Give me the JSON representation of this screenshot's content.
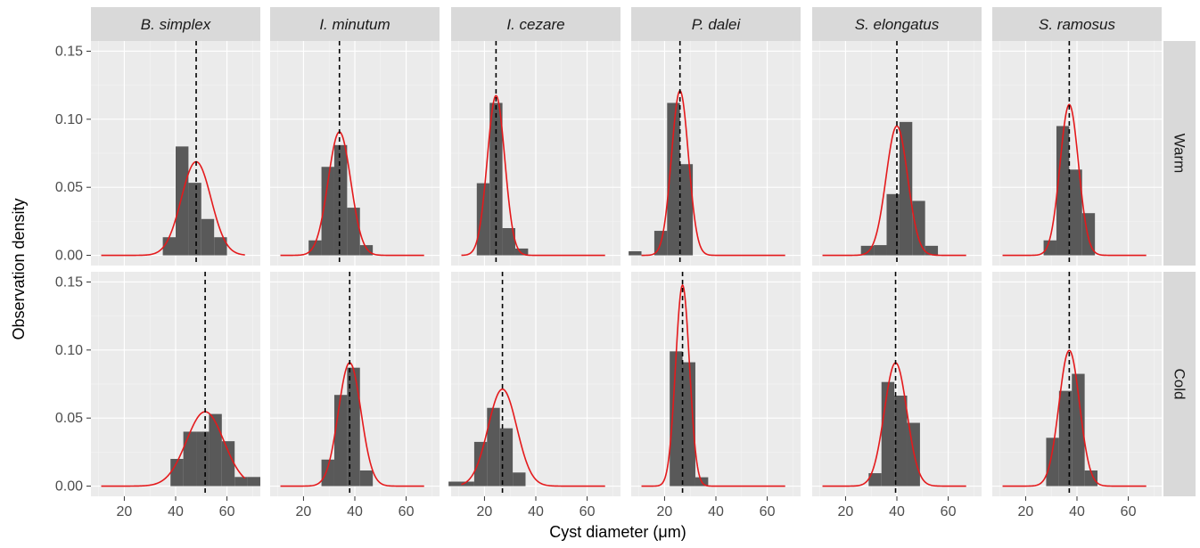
{
  "chart_data": {
    "type": "bar",
    "xlabel": "Cyst diameter (μm)",
    "ylabel": "Observation density",
    "xlim": [
      7,
      73
    ],
    "ylim": [
      -0.0075,
      0.1575
    ],
    "x_ticks": [
      20,
      40,
      60
    ],
    "y_ticks": [
      0.0,
      0.05,
      0.1,
      0.15
    ],
    "y_tick_labels": [
      "0.00",
      "0.05",
      "0.10",
      "0.15"
    ],
    "bin_width": 5,
    "species": [
      "B. simplex",
      "I. minutum",
      "I. cezare",
      "P. dalei",
      "S. elongatus",
      "S. ramosus"
    ],
    "conditions": [
      "Warm",
      "Cold"
    ],
    "colors": {
      "bar": "#595959",
      "curve": "#e41a1c",
      "mean_line": "#000000",
      "panel_bg": "#ebebeb",
      "strip_bg": "#d9d9d9",
      "grid_major": "#ffffff"
    },
    "panels": [
      {
        "species": "B. simplex",
        "condition": "Warm",
        "mean": 48,
        "sd": 5.8,
        "bins": [
          [
            35,
            0.0133
          ],
          [
            40,
            0.08
          ],
          [
            45,
            0.0533
          ],
          [
            50,
            0.0267
          ],
          [
            55,
            0.0133
          ],
          [
            60,
            0.0
          ]
        ]
      },
      {
        "species": "I. minutum",
        "condition": "Warm",
        "mean": 34,
        "sd": 4.4,
        "bins": [
          [
            22,
            0.011
          ],
          [
            27,
            0.065
          ],
          [
            32,
            0.081
          ],
          [
            37,
            0.035
          ],
          [
            42,
            0.0075
          ]
        ]
      },
      {
        "species": "I. cezare",
        "condition": "Warm",
        "mean": 24.5,
        "sd": 3.4,
        "bins": [
          [
            17,
            0.053
          ],
          [
            22,
            0.112
          ],
          [
            27,
            0.02
          ],
          [
            32,
            0.005
          ]
        ]
      },
      {
        "species": "P. dalei",
        "condition": "Warm",
        "mean": 26,
        "sd": 3.3,
        "bins": [
          [
            6,
            0.003
          ],
          [
            11,
            0.0
          ],
          [
            16,
            0.018
          ],
          [
            21,
            0.112
          ],
          [
            26,
            0.067
          ],
          [
            31,
            0.0
          ]
        ]
      },
      {
        "species": "S. elongatus",
        "condition": "Warm",
        "mean": 40,
        "sd": 4.2,
        "bins": [
          [
            26,
            0.007
          ],
          [
            31,
            0.0075
          ],
          [
            36,
            0.045
          ],
          [
            41,
            0.098
          ],
          [
            46,
            0.04
          ],
          [
            51,
            0.007
          ]
        ]
      },
      {
        "species": "S. ramosus",
        "condition": "Warm",
        "mean": 37,
        "sd": 3.6,
        "bins": [
          [
            27,
            0.011
          ],
          [
            32,
            0.095
          ],
          [
            37,
            0.063
          ],
          [
            42,
            0.031
          ]
        ]
      },
      {
        "species": "B. simplex",
        "condition": "Cold",
        "mean": 51.5,
        "sd": 7.3,
        "bins": [
          [
            38,
            0.02
          ],
          [
            43,
            0.04
          ],
          [
            48,
            0.04
          ],
          [
            53,
            0.053
          ],
          [
            58,
            0.033
          ],
          [
            63,
            0.0067
          ],
          [
            68,
            0.0067
          ]
        ]
      },
      {
        "species": "I. minutum",
        "condition": "Cold",
        "mean": 38,
        "sd": 4.4,
        "bins": [
          [
            27,
            0.0195
          ],
          [
            32,
            0.067
          ],
          [
            37,
            0.087
          ],
          [
            42,
            0.0115
          ]
        ]
      },
      {
        "species": "I. cezare",
        "condition": "Cold",
        "mean": 27,
        "sd": 5.6,
        "bins": [
          [
            6,
            0.0033
          ],
          [
            11,
            0.0033
          ],
          [
            16,
            0.0325
          ],
          [
            21,
            0.0575
          ],
          [
            26,
            0.0425
          ],
          [
            31,
            0.01
          ]
        ]
      },
      {
        "species": "P. dalei",
        "condition": "Cold",
        "mean": 27,
        "sd": 2.7,
        "bins": [
          [
            15,
            0.0
          ],
          [
            20,
            0.0
          ],
          [
            22,
            0.099
          ],
          [
            27,
            0.091
          ],
          [
            32,
            0.0065
          ]
        ]
      },
      {
        "species": "S. elongatus",
        "condition": "Cold",
        "mean": 39.5,
        "sd": 4.4,
        "bins": [
          [
            29,
            0.0095
          ],
          [
            34,
            0.0765
          ],
          [
            39,
            0.0665
          ],
          [
            44,
            0.0465
          ]
        ]
      },
      {
        "species": "S. ramosus",
        "condition": "Cold",
        "mean": 37,
        "sd": 4.0,
        "bins": [
          [
            28,
            0.0355
          ],
          [
            33,
            0.07
          ],
          [
            38,
            0.0825
          ],
          [
            43,
            0.0115
          ]
        ]
      }
    ]
  }
}
